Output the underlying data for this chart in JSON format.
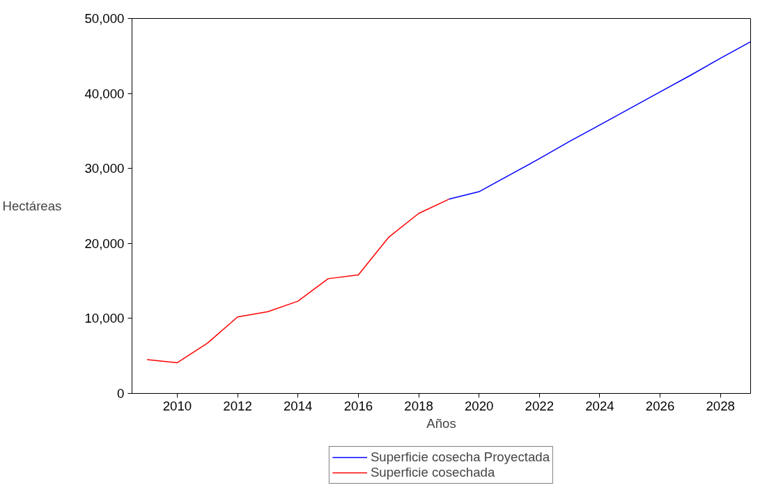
{
  "chart_data": {
    "type": "line",
    "xlabel": "Años",
    "ylabel": "Hectáreas",
    "x": [
      2009,
      2010,
      2011,
      2012,
      2013,
      2014,
      2015,
      2016,
      2017,
      2018,
      2019,
      2020,
      2021,
      2022,
      2023,
      2024,
      2025,
      2026,
      2027,
      2028,
      2029
    ],
    "series": [
      {
        "name": "Superficie cosecha Proyectada",
        "color": "#0000ff",
        "values": [
          null,
          null,
          null,
          null,
          null,
          null,
          null,
          null,
          null,
          null,
          25900,
          26900,
          29100,
          31300,
          33600,
          35800,
          38000,
          40200,
          42400,
          44700,
          46900
        ]
      },
      {
        "name": "Superficie cosechada",
        "color": "#ff0000",
        "values": [
          4500,
          4100,
          6700,
          10200,
          10900,
          12300,
          15300,
          15800,
          20800,
          24000,
          25900,
          null,
          null,
          null,
          null,
          null,
          null,
          null,
          null,
          null,
          null
        ]
      }
    ],
    "xlim": [
      2008.5,
      2029
    ],
    "xticks": [
      2010,
      2012,
      2014,
      2016,
      2018,
      2020,
      2022,
      2024,
      2026,
      2028
    ],
    "ylim": [
      0,
      50000
    ],
    "yticks": [
      0,
      {
        "value": 10000,
        "label": "10,000"
      },
      {
        "value": 20000,
        "label": "20,000"
      },
      {
        "value": 30000,
        "label": "30,000"
      },
      {
        "value": 40000,
        "label": "40,000"
      },
      {
        "value": 50000,
        "label": "50,000"
      }
    ],
    "grid": false,
    "legend": "bottom",
    "marker": "none",
    "line_style": "solid"
  }
}
